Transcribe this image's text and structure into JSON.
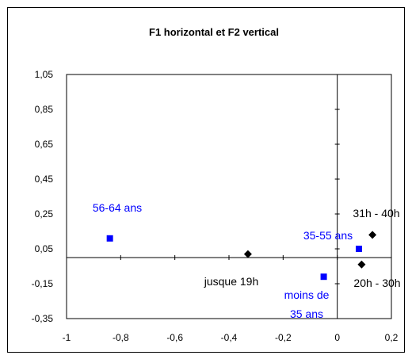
{
  "chart_data": {
    "type": "scatter",
    "title": "F1 horizontal et F2 vertical",
    "xlabel": "",
    "ylabel": "",
    "xlim": [
      -1,
      0.2
    ],
    "ylim": [
      -0.35,
      1.05
    ],
    "x_ticks": [
      "-1",
      "-0,8",
      "-0,6",
      "-0,4",
      "-0,2",
      "0",
      "0,2"
    ],
    "y_ticks": [
      "1,05",
      "0,85",
      "0,65",
      "0,45",
      "0,25",
      "0,05",
      "-0,15",
      "-0,35"
    ],
    "grid": false,
    "colors": {
      "series_a": "#0000ff",
      "series_b": "#000000",
      "axis": "#000000"
    },
    "series": [
      {
        "marker": "square",
        "color": "#0000ff",
        "points": [
          {
            "label": "56-64 ans",
            "x": -0.84,
            "y": 0.11
          },
          {
            "label": "35-55 ans",
            "x": 0.08,
            "y": 0.05
          },
          {
            "label": "moins de 35 ans",
            "x": -0.05,
            "y": -0.11
          }
        ]
      },
      {
        "marker": "diamond",
        "color": "#000000",
        "points": [
          {
            "label": "jusque 19h",
            "x": -0.33,
            "y": 0.02
          },
          {
            "label": "31h - 40h",
            "x": 0.13,
            "y": 0.13
          },
          {
            "label": "20h - 30h",
            "x": 0.09,
            "y": -0.04
          }
        ]
      }
    ]
  }
}
